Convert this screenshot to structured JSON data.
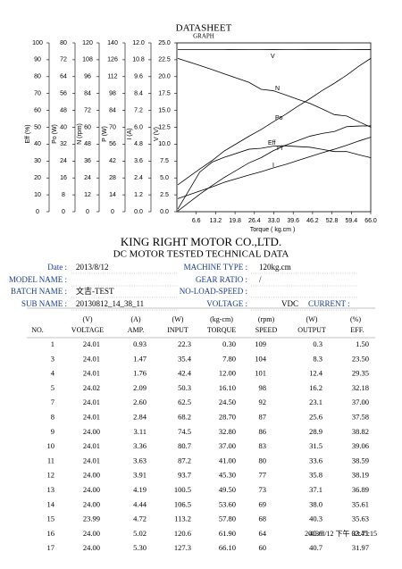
{
  "chart_data": {
    "type": "line",
    "title": "DATASHEET",
    "subtitle": "GRAPH",
    "x_label": "Torque ( kg.cm )",
    "x": [
      0.3,
      7.8,
      12.0,
      16.1,
      24.5,
      28.7,
      32.8,
      37.0,
      41.0,
      45.3,
      49.5,
      53.6,
      57.8,
      61.9,
      66.1
    ],
    "xlim": [
      0,
      66
    ],
    "xticks": [
      6.6,
      13.2,
      19.8,
      26.4,
      {
        "value": 33,
        "label": "33.0"
      },
      39.6,
      46.2,
      52.8,
      59.4,
      {
        "value": 66,
        "label": "66.0"
      }
    ],
    "y_axes": [
      {
        "label": "Eff (%)",
        "ylim": [
          0,
          100
        ],
        "yticks": [
          0,
          10,
          20,
          30,
          40,
          50,
          60,
          70,
          80,
          90,
          100
        ]
      },
      {
        "label": "Po (W)",
        "ylim": [
          0,
          80
        ],
        "yticks": [
          0,
          8,
          16,
          24,
          32,
          40,
          48,
          56,
          64,
          72,
          80
        ]
      },
      {
        "label": "N (rpm)",
        "ylim": [
          0,
          120
        ],
        "yticks": [
          0,
          12,
          24,
          36,
          48,
          60,
          72,
          84,
          96,
          108,
          120
        ]
      },
      {
        "label": "P (W)",
        "ylim": [
          0,
          140
        ],
        "yticks": [
          0,
          14,
          28,
          42,
          56,
          70,
          84,
          98,
          112,
          126,
          140
        ]
      },
      {
        "label": "I (A)",
        "ylim": [
          0,
          12
        ],
        "yticks": [
          {
            "value": 0,
            "label": "0.0"
          },
          1.2,
          2.4,
          3.6,
          4.8,
          {
            "value": 6,
            "label": "6.0"
          },
          7.2,
          8.4,
          9.6,
          10.8,
          {
            "value": 12,
            "label": "12.0"
          }
        ]
      },
      {
        "label": "V (V)",
        "ylim": [
          0,
          25
        ],
        "yticks": [
          {
            "value": 0,
            "label": "0.0"
          },
          2.5,
          {
            "value": 5,
            "label": "5.0"
          },
          7.5,
          {
            "value": 10,
            "label": "10.0"
          },
          12.5,
          {
            "value": 15,
            "label": "15.0"
          },
          17.5,
          {
            "value": 20,
            "label": "20.0"
          },
          22.5,
          {
            "value": 25,
            "label": "25.0"
          }
        ]
      }
    ],
    "series": [
      {
        "name": "V",
        "color": "#000000",
        "axis": 5,
        "values": [
          24.01,
          24.01,
          24.01,
          24.02,
          24.01,
          24.01,
          24.0,
          24.01,
          24.01,
          24.0,
          24.0,
          24.0,
          23.99,
          24.0,
          24.0
        ]
      },
      {
        "name": "N",
        "color": "#000000",
        "axis": 2,
        "values": [
          109,
          104,
          101,
          98,
          92,
          87,
          86,
          83,
          80,
          77,
          73,
          69,
          68,
          64,
          60
        ]
      },
      {
        "name": "Po",
        "color": "#000000",
        "axis": 1,
        "values": [
          0.3,
          8.3,
          12.4,
          16.2,
          23.1,
          25.6,
          28.9,
          31.5,
          33.6,
          35.8,
          37.1,
          38.0,
          40.3,
          40.6,
          40.7
        ]
      },
      {
        "name": "Eff",
        "color": "#000000",
        "axis": 0,
        "values": [
          1.5,
          23.5,
          29.35,
          32.18,
          37.0,
          37.58,
          38.82,
          39.06,
          38.59,
          38.19,
          36.89,
          35.61,
          35.63,
          33.71,
          31.97
        ]
      },
      {
        "name": "Pi",
        "color": "#000000",
        "axis": 3,
        "values": [
          22.3,
          35.4,
          42.4,
          50.3,
          62.5,
          68.2,
          74.5,
          80.7,
          87.2,
          93.7,
          100.5,
          106.5,
          113.2,
          120.6,
          127.3
        ]
      },
      {
        "name": "I",
        "color": "#000000",
        "axis": 4,
        "values": [
          0.93,
          1.47,
          1.76,
          2.09,
          2.6,
          2.84,
          3.11,
          3.36,
          3.63,
          3.91,
          4.19,
          4.44,
          4.72,
          5.02,
          5.3
        ]
      }
    ]
  },
  "company": "KING RIGHT MOTOR CO.,LTD.",
  "doc_title": "DC MOTOR TESTED TECHNICAL DATA",
  "info": {
    "left": [
      {
        "label": "Date :",
        "value": "2013/8/12"
      },
      {
        "label": "MODEL NAME :"
      },
      {
        "label": "BATCH NAME :",
        "value": "文吉-TEST"
      },
      {
        "label": "SUB NAME :",
        "value": "20130812_14_38_11"
      }
    ],
    "right": [
      {
        "label": "MACHINE TYPE :",
        "value": "120kg.cm"
      },
      {
        "label": "GEAR RATIO :",
        "value": "/"
      },
      {
        "label": "NO-LOAD-SPEED :"
      },
      {
        "label": "VOLTAGE :",
        "value": "VDC",
        "extra_label": "CURRENT :"
      }
    ]
  },
  "table": {
    "units": [
      "(V)",
      "(A)",
      "(W)",
      "(kg-cm)",
      "(rpm)",
      "(W)",
      "(%)"
    ],
    "headers": [
      "NO.",
      "VOLTAGE",
      "AMP.",
      "INPUT",
      "TORQUE",
      "SPEED",
      "OUTPUT",
      "EFF."
    ],
    "rows": [
      [
        "1",
        "24.01",
        "0.93",
        "22.3",
        "0.30",
        "109",
        "0.3",
        "1.50"
      ],
      [
        "3",
        "24.01",
        "1.47",
        "35.4",
        "7.80",
        "104",
        "8.3",
        "23.50"
      ],
      [
        "4",
        "24.01",
        "1.76",
        "42.4",
        "12.00",
        "101",
        "12.4",
        "29.35"
      ],
      [
        "5",
        "24.02",
        "2.09",
        "50.3",
        "16.10",
        "98",
        "16.2",
        "32.18"
      ],
      [
        "7",
        "24.01",
        "2.60",
        "62.5",
        "24.50",
        "92",
        "23.1",
        "37.00"
      ],
      [
        "8",
        "24.01",
        "2.84",
        "68.2",
        "28.70",
        "87",
        "25.6",
        "37.58"
      ],
      [
        "9",
        "24.00",
        "3.11",
        "74.5",
        "32.80",
        "86",
        "28.9",
        "38.82"
      ],
      [
        "10",
        "24.01",
        "3.36",
        "80.7",
        "37.00",
        "83",
        "31.5",
        "39.06"
      ],
      [
        "11",
        "24.01",
        "3.63",
        "87.2",
        "41.00",
        "80",
        "33.6",
        "38.59"
      ],
      [
        "12",
        "24.00",
        "3.91",
        "93.7",
        "45.30",
        "77",
        "35.8",
        "38.19"
      ],
      [
        "13",
        "24.00",
        "4.19",
        "100.5",
        "49.50",
        "73",
        "37.1",
        "36.89"
      ],
      [
        "14",
        "24.00",
        "4.44",
        "106.5",
        "53.60",
        "69",
        "38.0",
        "35.61"
      ],
      [
        "15",
        "23.99",
        "4.72",
        "113.2",
        "57.80",
        "68",
        "40.3",
        "35.63"
      ],
      [
        "16",
        "24.00",
        "5.02",
        "120.6",
        "61.90",
        "64",
        "40.6",
        "33.71"
      ],
      [
        "17",
        "24.00",
        "5.30",
        "127.3",
        "66.10",
        "60",
        "40.7",
        "31.97"
      ]
    ]
  },
  "footer": "2013/8/12 下午 02:45:15"
}
